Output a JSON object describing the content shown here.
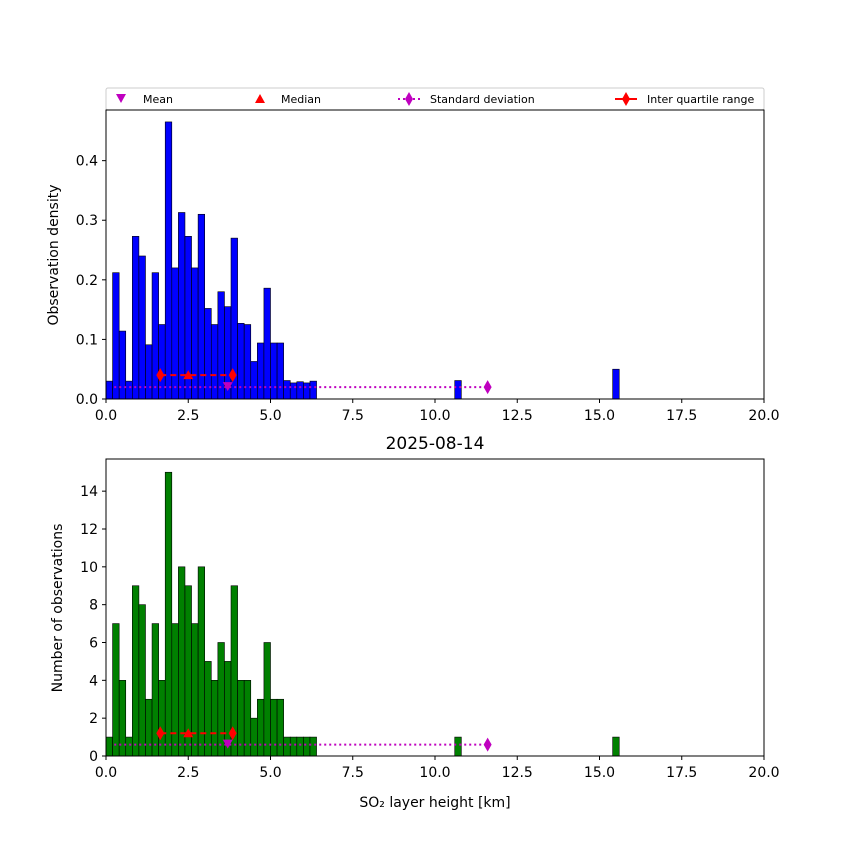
{
  "chart_data": [
    {
      "type": "histogram",
      "panel": "top",
      "title": "",
      "xlabel": "",
      "ylabel": "Observation density",
      "xlim": [
        0,
        20
      ],
      "ylim": [
        0,
        0.485
      ],
      "xticks": [
        "0.0",
        "2.5",
        "5.0",
        "7.5",
        "10.0",
        "12.5",
        "15.0",
        "17.5",
        "20.0"
      ],
      "xtick_values": [
        0,
        2.5,
        5,
        7.5,
        10,
        12.5,
        15,
        17.5,
        20
      ],
      "yticks": [
        "0.0",
        "0.1",
        "0.2",
        "0.3",
        "0.4"
      ],
      "ytick_values": [
        0,
        0.1,
        0.2,
        0.3,
        0.4
      ],
      "bar_color": "#0000ff",
      "bin_width": 0.2,
      "bin_starts": [
        0,
        0.2,
        0.4,
        0.6,
        0.8,
        1.0,
        1.2,
        1.4,
        1.6,
        1.8,
        2.0,
        2.2,
        2.4,
        2.6,
        2.8,
        3.0,
        3.2,
        3.4,
        3.6,
        3.8,
        4.0,
        4.2,
        4.4,
        4.6,
        4.8,
        5.0,
        5.2,
        5.4,
        5.6,
        5.8,
        6.0,
        6.2,
        10.6,
        15.4
      ],
      "values": [
        0.03,
        0.212,
        0.114,
        0.03,
        0.273,
        0.24,
        0.091,
        0.212,
        0.125,
        0.465,
        0.22,
        0.313,
        0.273,
        0.22,
        0.31,
        0.152,
        0.125,
        0.18,
        0.155,
        0.27,
        0.127,
        0.125,
        0.063,
        0.094,
        0.186,
        0.094,
        0.094,
        0.031,
        0.027,
        0.029,
        0.027,
        0.03,
        0.031,
        0.05
      ],
      "stats": {
        "level": 0.02,
        "mean": 3.7,
        "median_level": 0.04,
        "median": 2.5,
        "iqr": [
          1.65,
          3.85
        ],
        "std_range": [
          0.25,
          11.6
        ]
      }
    },
    {
      "type": "histogram",
      "panel": "bottom",
      "title": "2025-08-14",
      "xlabel": "SO₂ layer height [km]",
      "ylabel": "Number of observations",
      "xlim": [
        0,
        20
      ],
      "ylim": [
        0,
        15.7
      ],
      "xticks": [
        "0.0",
        "2.5",
        "5.0",
        "7.5",
        "10.0",
        "12.5",
        "15.0",
        "17.5",
        "20.0"
      ],
      "xtick_values": [
        0,
        2.5,
        5,
        7.5,
        10,
        12.5,
        15,
        17.5,
        20
      ],
      "yticks": [
        "0",
        "2",
        "4",
        "6",
        "8",
        "10",
        "12",
        "14"
      ],
      "ytick_values": [
        0,
        2,
        4,
        6,
        8,
        10,
        12,
        14
      ],
      "bar_color": "#008000",
      "bin_width": 0.2,
      "bin_starts": [
        0,
        0.2,
        0.4,
        0.6,
        0.8,
        1.0,
        1.2,
        1.4,
        1.6,
        1.8,
        2.0,
        2.2,
        2.4,
        2.6,
        2.8,
        3.0,
        3.2,
        3.4,
        3.6,
        3.8,
        4.0,
        4.2,
        4.4,
        4.6,
        4.8,
        5.0,
        5.2,
        5.4,
        5.6,
        5.8,
        6.0,
        6.2,
        10.6,
        15.4
      ],
      "values": [
        1,
        7,
        4,
        1,
        9,
        8,
        3,
        7,
        4,
        15,
        7,
        10,
        9,
        7,
        10,
        5,
        4,
        6,
        5,
        9,
        4,
        4,
        2,
        3,
        6,
        3,
        3,
        1,
        1,
        1,
        1,
        1,
        1,
        1
      ],
      "stats": {
        "level": 0.6,
        "mean": 3.7,
        "median_level": 1.2,
        "median": 2.5,
        "iqr": [
          1.65,
          3.85
        ],
        "std_range": [
          0.25,
          11.6
        ]
      }
    }
  ],
  "legend": {
    "mean": "Mean",
    "median": "Median",
    "std": "Standard deviation",
    "iqr": "Inter quartile range"
  },
  "colors": {
    "mean": "#bf00bf",
    "median": "#ff0000",
    "std": "#bf00bf",
    "iqr": "#ff0000"
  }
}
